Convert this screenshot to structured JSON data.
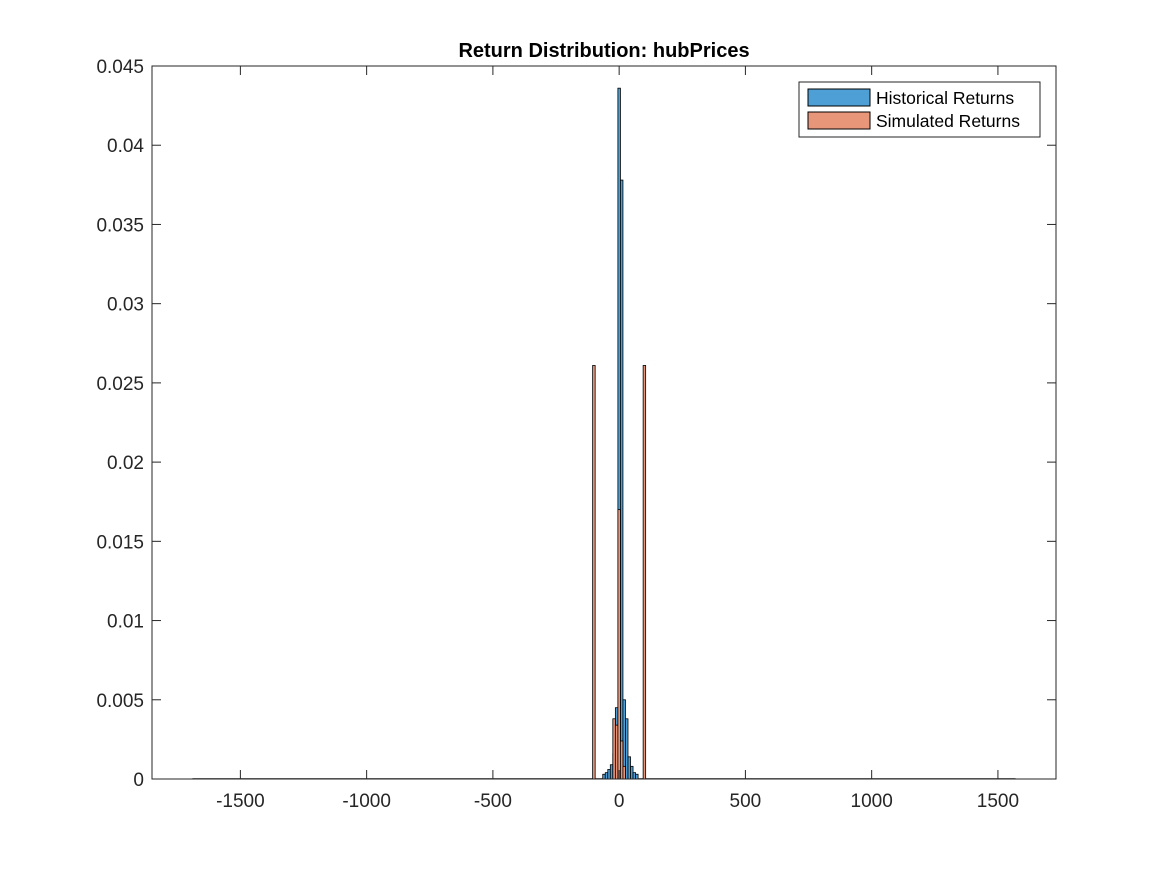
{
  "chart_data": {
    "type": "bar",
    "title": "Return Distribution: hubPrices",
    "xlabel": "",
    "ylabel": "",
    "xlim": [
      -1850,
      1730
    ],
    "ylim": [
      0,
      0.045
    ],
    "grid": false,
    "legend_placement": "top-right",
    "x_ticks": [
      -1500,
      -1000,
      -500,
      0,
      500,
      1000,
      1500
    ],
    "x_tick_labels": [
      "-1500",
      "-1000",
      "-500",
      "0",
      "500",
      "1000",
      "1500"
    ],
    "y_ticks": [
      0,
      0.005,
      0.01,
      0.015,
      0.02,
      0.025,
      0.03,
      0.035,
      0.04,
      0.045
    ],
    "y_tick_labels": [
      "0",
      "0.005",
      "0.01",
      "0.015",
      "0.02",
      "0.025",
      "0.03",
      "0.035",
      "0.04",
      "0.045"
    ],
    "series": [
      {
        "name": "Historical Returns",
        "color": "#4d9fd6",
        "bin_width": 10,
        "bins": [
          {
            "x": -60,
            "y": 0.0003
          },
          {
            "x": -50,
            "y": 0.0004
          },
          {
            "x": -40,
            "y": 0.0006
          },
          {
            "x": -30,
            "y": 0.0009
          },
          {
            "x": -20,
            "y": 0.0016
          },
          {
            "x": -10,
            "y": 0.0045
          },
          {
            "x": 0,
            "y": 0.0436
          },
          {
            "x": 10,
            "y": 0.0378
          },
          {
            "x": 20,
            "y": 0.005
          },
          {
            "x": 30,
            "y": 0.0038
          },
          {
            "x": 40,
            "y": 0.0014
          },
          {
            "x": 50,
            "y": 0.0008
          },
          {
            "x": 60,
            "y": 0.0004
          },
          {
            "x": 70,
            "y": 0.0003
          }
        ]
      },
      {
        "name": "Simulated Returns",
        "color": "#e8967a",
        "bin_width": 10,
        "bins": [
          {
            "x": -100,
            "y": 0.0261
          },
          {
            "x": -20,
            "y": 0.0038
          },
          {
            "x": -10,
            "y": 0.0034
          },
          {
            "x": 0,
            "y": 0.017
          },
          {
            "x": 10,
            "y": 0.0024
          },
          {
            "x": 20,
            "y": 0.0008
          },
          {
            "x": 100,
            "y": 0.0261
          }
        ]
      }
    ],
    "history_range": [
      -1690,
      1570
    ]
  },
  "colors": {
    "axes": "#262626",
    "bar_edge": "#000000",
    "background": "#ffffff"
  }
}
